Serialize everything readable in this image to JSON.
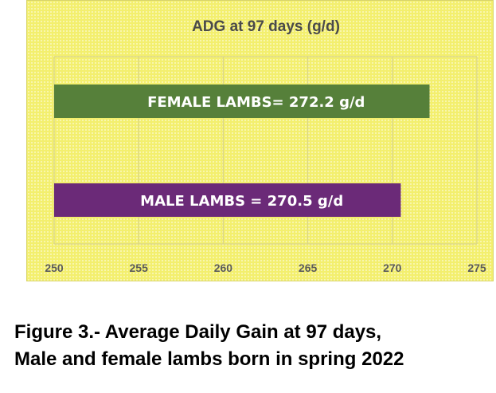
{
  "chart_data": {
    "type": "bar",
    "orientation": "horizontal",
    "title": "ADG at 97 days (g/d)",
    "xlabel": "",
    "ylabel": "",
    "xlim": [
      250,
      275
    ],
    "ticks": [
      "250",
      "255",
      "260",
      "265",
      "270",
      "275"
    ],
    "tick_values": [
      250,
      255,
      260,
      265,
      270,
      275
    ],
    "grid": "vertical",
    "legend": "none",
    "bars": [
      {
        "label": "FEMALE LAMBS= 272.2 g/d",
        "value": 272.2,
        "color": "#56803a"
      },
      {
        "label": "MALE LAMBS = 270.5 g/d",
        "value": 270.5,
        "color": "#6b2a78"
      }
    ],
    "background_color": "#f3ef6e"
  },
  "caption": {
    "line1": "Figure 3.- Average Daily Gain at 97 days,",
    "line2": "Male and female lambs born in spring 2022"
  }
}
